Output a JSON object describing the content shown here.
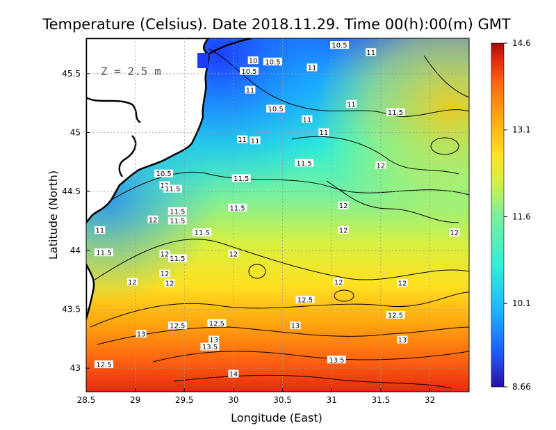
{
  "chart_data": {
    "type": "heatmap",
    "title": "Temperature (Celsius). Date 2018.11.29. Time 00(h):00(m)  GMT",
    "xlabel": "Longitude (East)",
    "ylabel": "Latitude (North)",
    "depth_label": "Z  =  2.5  m",
    "xlim": [
      28.5,
      32.4
    ],
    "ylim": [
      42.8,
      45.8
    ],
    "x_ticks": [
      "28.5",
      "29",
      "29.5",
      "30",
      "30.5",
      "31",
      "31.5",
      "32"
    ],
    "y_ticks": [
      "43",
      "43.5",
      "44",
      "44.5",
      "45",
      "45.5"
    ],
    "grid": true,
    "colorbar": {
      "min": 8.66,
      "max": 14.6,
      "tick_labels": [
        "14.6",
        "13.1",
        "11.6",
        "10.1",
        "8.66"
      ],
      "tick_values": [
        14.6,
        13.1,
        11.6,
        10.1,
        8.66
      ],
      "colors": [
        "#2a0ea6",
        "#1e5bff",
        "#1ab4ff",
        "#2ef0d8",
        "#7cf09a",
        "#d8f040",
        "#ffe020",
        "#ffaa10",
        "#ff6a10",
        "#e82810",
        "#a30e06"
      ]
    },
    "contour_labels": [
      {
        "text": "10.5",
        "x": 31.08,
        "y": 45.74
      },
      {
        "text": "11",
        "x": 31.4,
        "y": 45.68
      },
      {
        "text": "10",
        "x": 30.2,
        "y": 45.61
      },
      {
        "text": "10.5",
        "x": 30.4,
        "y": 45.6
      },
      {
        "text": "11",
        "x": 30.8,
        "y": 45.55
      },
      {
        "text": "10.5",
        "x": 30.16,
        "y": 45.52
      },
      {
        "text": "11",
        "x": 30.17,
        "y": 45.36
      },
      {
        "text": "11",
        "x": 31.2,
        "y": 45.24
      },
      {
        "text": "10.5",
        "x": 30.43,
        "y": 45.2
      },
      {
        "text": "11.5",
        "x": 31.65,
        "y": 45.17
      },
      {
        "text": "11",
        "x": 30.75,
        "y": 45.11
      },
      {
        "text": "11",
        "x": 30.92,
        "y": 45.0
      },
      {
        "text": "11",
        "x": 30.09,
        "y": 44.94
      },
      {
        "text": "11",
        "x": 30.22,
        "y": 44.93
      },
      {
        "text": "11.5",
        "x": 30.72,
        "y": 44.74
      },
      {
        "text": "12",
        "x": 31.5,
        "y": 44.72
      },
      {
        "text": "10.5",
        "x": 29.29,
        "y": 44.65
      },
      {
        "text": "11.5",
        "x": 30.08,
        "y": 44.61
      },
      {
        "text": "11",
        "x": 29.3,
        "y": 44.55
      },
      {
        "text": "11.5",
        "x": 29.38,
        "y": 44.52
      },
      {
        "text": "11.5",
        "x": 30.04,
        "y": 44.36
      },
      {
        "text": "12",
        "x": 31.12,
        "y": 44.38
      },
      {
        "text": "11.5",
        "x": 29.43,
        "y": 44.33
      },
      {
        "text": "12",
        "x": 29.18,
        "y": 44.26
      },
      {
        "text": "11.5",
        "x": 29.43,
        "y": 44.25
      },
      {
        "text": "11",
        "x": 28.64,
        "y": 44.17
      },
      {
        "text": "12",
        "x": 31.12,
        "y": 44.17
      },
      {
        "text": "12",
        "x": 32.25,
        "y": 44.15
      },
      {
        "text": "11.5",
        "x": 29.68,
        "y": 44.15
      },
      {
        "text": "11.5",
        "x": 28.68,
        "y": 43.98
      },
      {
        "text": "12",
        "x": 29.3,
        "y": 43.97
      },
      {
        "text": "11.5",
        "x": 29.43,
        "y": 43.93
      },
      {
        "text": "12",
        "x": 30.0,
        "y": 43.97
      },
      {
        "text": "12",
        "x": 29.3,
        "y": 43.8
      },
      {
        "text": "12",
        "x": 28.97,
        "y": 43.73
      },
      {
        "text": "12",
        "x": 29.35,
        "y": 43.72
      },
      {
        "text": "12",
        "x": 31.07,
        "y": 43.73
      },
      {
        "text": "12",
        "x": 31.72,
        "y": 43.72
      },
      {
        "text": "12.5",
        "x": 30.73,
        "y": 43.58
      },
      {
        "text": "12.5",
        "x": 31.65,
        "y": 43.45
      },
      {
        "text": "12.5",
        "x": 29.83,
        "y": 43.38
      },
      {
        "text": "12.5",
        "x": 29.43,
        "y": 43.36
      },
      {
        "text": "13",
        "x": 30.63,
        "y": 43.36
      },
      {
        "text": "13",
        "x": 29.06,
        "y": 43.29
      },
      {
        "text": "13",
        "x": 29.8,
        "y": 43.24
      },
      {
        "text": "13",
        "x": 31.72,
        "y": 43.24
      },
      {
        "text": "13.5",
        "x": 29.76,
        "y": 43.18
      },
      {
        "text": "13.5",
        "x": 31.05,
        "y": 43.07
      },
      {
        "text": "12.5",
        "x": 28.68,
        "y": 43.03
      },
      {
        "text": "14",
        "x": 30.0,
        "y": 42.95
      }
    ]
  }
}
